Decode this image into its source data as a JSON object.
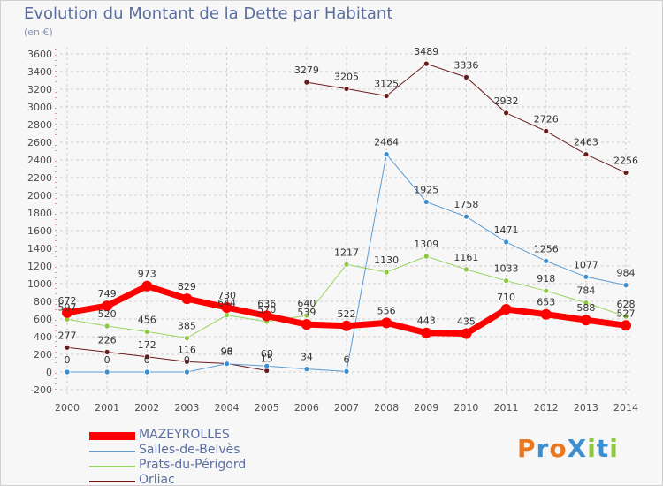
{
  "header": {
    "title": "Evolution du Montant de la Dette par Habitant",
    "unit": "(en €)"
  },
  "colors": {
    "background": "#f7f7f7",
    "grid": "#cfcfcf",
    "axis_label": "#4d4d4d"
  },
  "logo": {
    "text": "ProXiti",
    "letter_colors": [
      "#e87722",
      "#3b8fd0",
      "#e87722",
      "#3b8fd0",
      "#8dc63f",
      "#3b8fd0",
      "#8dc63f"
    ]
  },
  "chart_data": {
    "type": "line",
    "title": "Evolution du Montant de la Dette par Habitant",
    "subtitle": "(en €)",
    "x": [
      "2000",
      "2001",
      "2002",
      "2003",
      "2004",
      "2005",
      "2006",
      "2007",
      "2008",
      "2009",
      "2010",
      "2011",
      "2012",
      "2013",
      "2014"
    ],
    "ylim": [
      -200,
      3600
    ],
    "yticks": [
      -200,
      0,
      200,
      400,
      600,
      800,
      1000,
      1200,
      1400,
      1600,
      1800,
      2000,
      2200,
      2400,
      2600,
      2800,
      3000,
      3200,
      3400,
      3600
    ],
    "grid": true,
    "legend_position": "bottom-left",
    "series": [
      {
        "name": "Orliac",
        "color": "#6b1a1a",
        "marker": "#6b1a1a",
        "width": 1,
        "values": [
          277,
          226,
          172,
          116,
          96,
          15,
          3279,
          3205,
          3125,
          3489,
          3336,
          2932,
          2726,
          2463,
          2256
        ],
        "labels": [
          "277",
          "226",
          "172",
          "116",
          "96",
          "15",
          "3279",
          "3205",
          "3125",
          "3489",
          "3336",
          "2932",
          "2726",
          "2463",
          "2256"
        ],
        "points": 15,
        "gaps": [
          5
        ]
      },
      {
        "name": "Prats-du-Périgord",
        "color": "#99d35f",
        "marker": "#8dc63f",
        "width": 1,
        "values": [
          597,
          520,
          456,
          385,
          644,
          570,
          640,
          1217,
          1130,
          1309,
          1161,
          1033,
          918,
          784,
          628
        ],
        "labels": [
          "597",
          "520",
          "456",
          "385",
          "644",
          "570",
          "640",
          "1217",
          "1130",
          "1309",
          "1161",
          "1033",
          "918",
          "784",
          "628"
        ]
      },
      {
        "name": "Salles-de-Belvès",
        "color": "#5b9bd5",
        "marker": "#3b8fd0",
        "width": 1,
        "values": [
          0,
          0,
          0,
          0,
          93,
          68,
          34,
          6,
          2464,
          1925,
          1758,
          1471,
          1256,
          1077,
          984
        ],
        "labels": [
          "0",
          "0",
          "0",
          "0",
          "93",
          "68",
          "34",
          "6",
          "2464",
          "1925",
          "1758",
          "1471",
          "1256",
          "1077",
          "984"
        ]
      },
      {
        "name": "MAZEYROLLES",
        "color": "#ff0000",
        "marker": "#ff0000",
        "width": 7,
        "values": [
          672,
          749,
          973,
          829,
          730,
          636,
          539,
          522,
          556,
          443,
          435,
          710,
          653,
          588,
          527
        ],
        "labels": [
          "672",
          "749",
          "973",
          "829",
          "730",
          "636",
          "539",
          "522",
          "556",
          "443",
          "435",
          "710",
          "653",
          "588",
          "527"
        ]
      }
    ]
  },
  "legend": [
    {
      "name": "MAZEYROLLES",
      "color": "#ff0000"
    },
    {
      "name": "Salles-de-Belvès",
      "color": "#5b9bd5"
    },
    {
      "name": "Prats-du-Périgord",
      "color": "#99d35f"
    },
    {
      "name": "Orliac",
      "color": "#6b1a1a"
    }
  ]
}
